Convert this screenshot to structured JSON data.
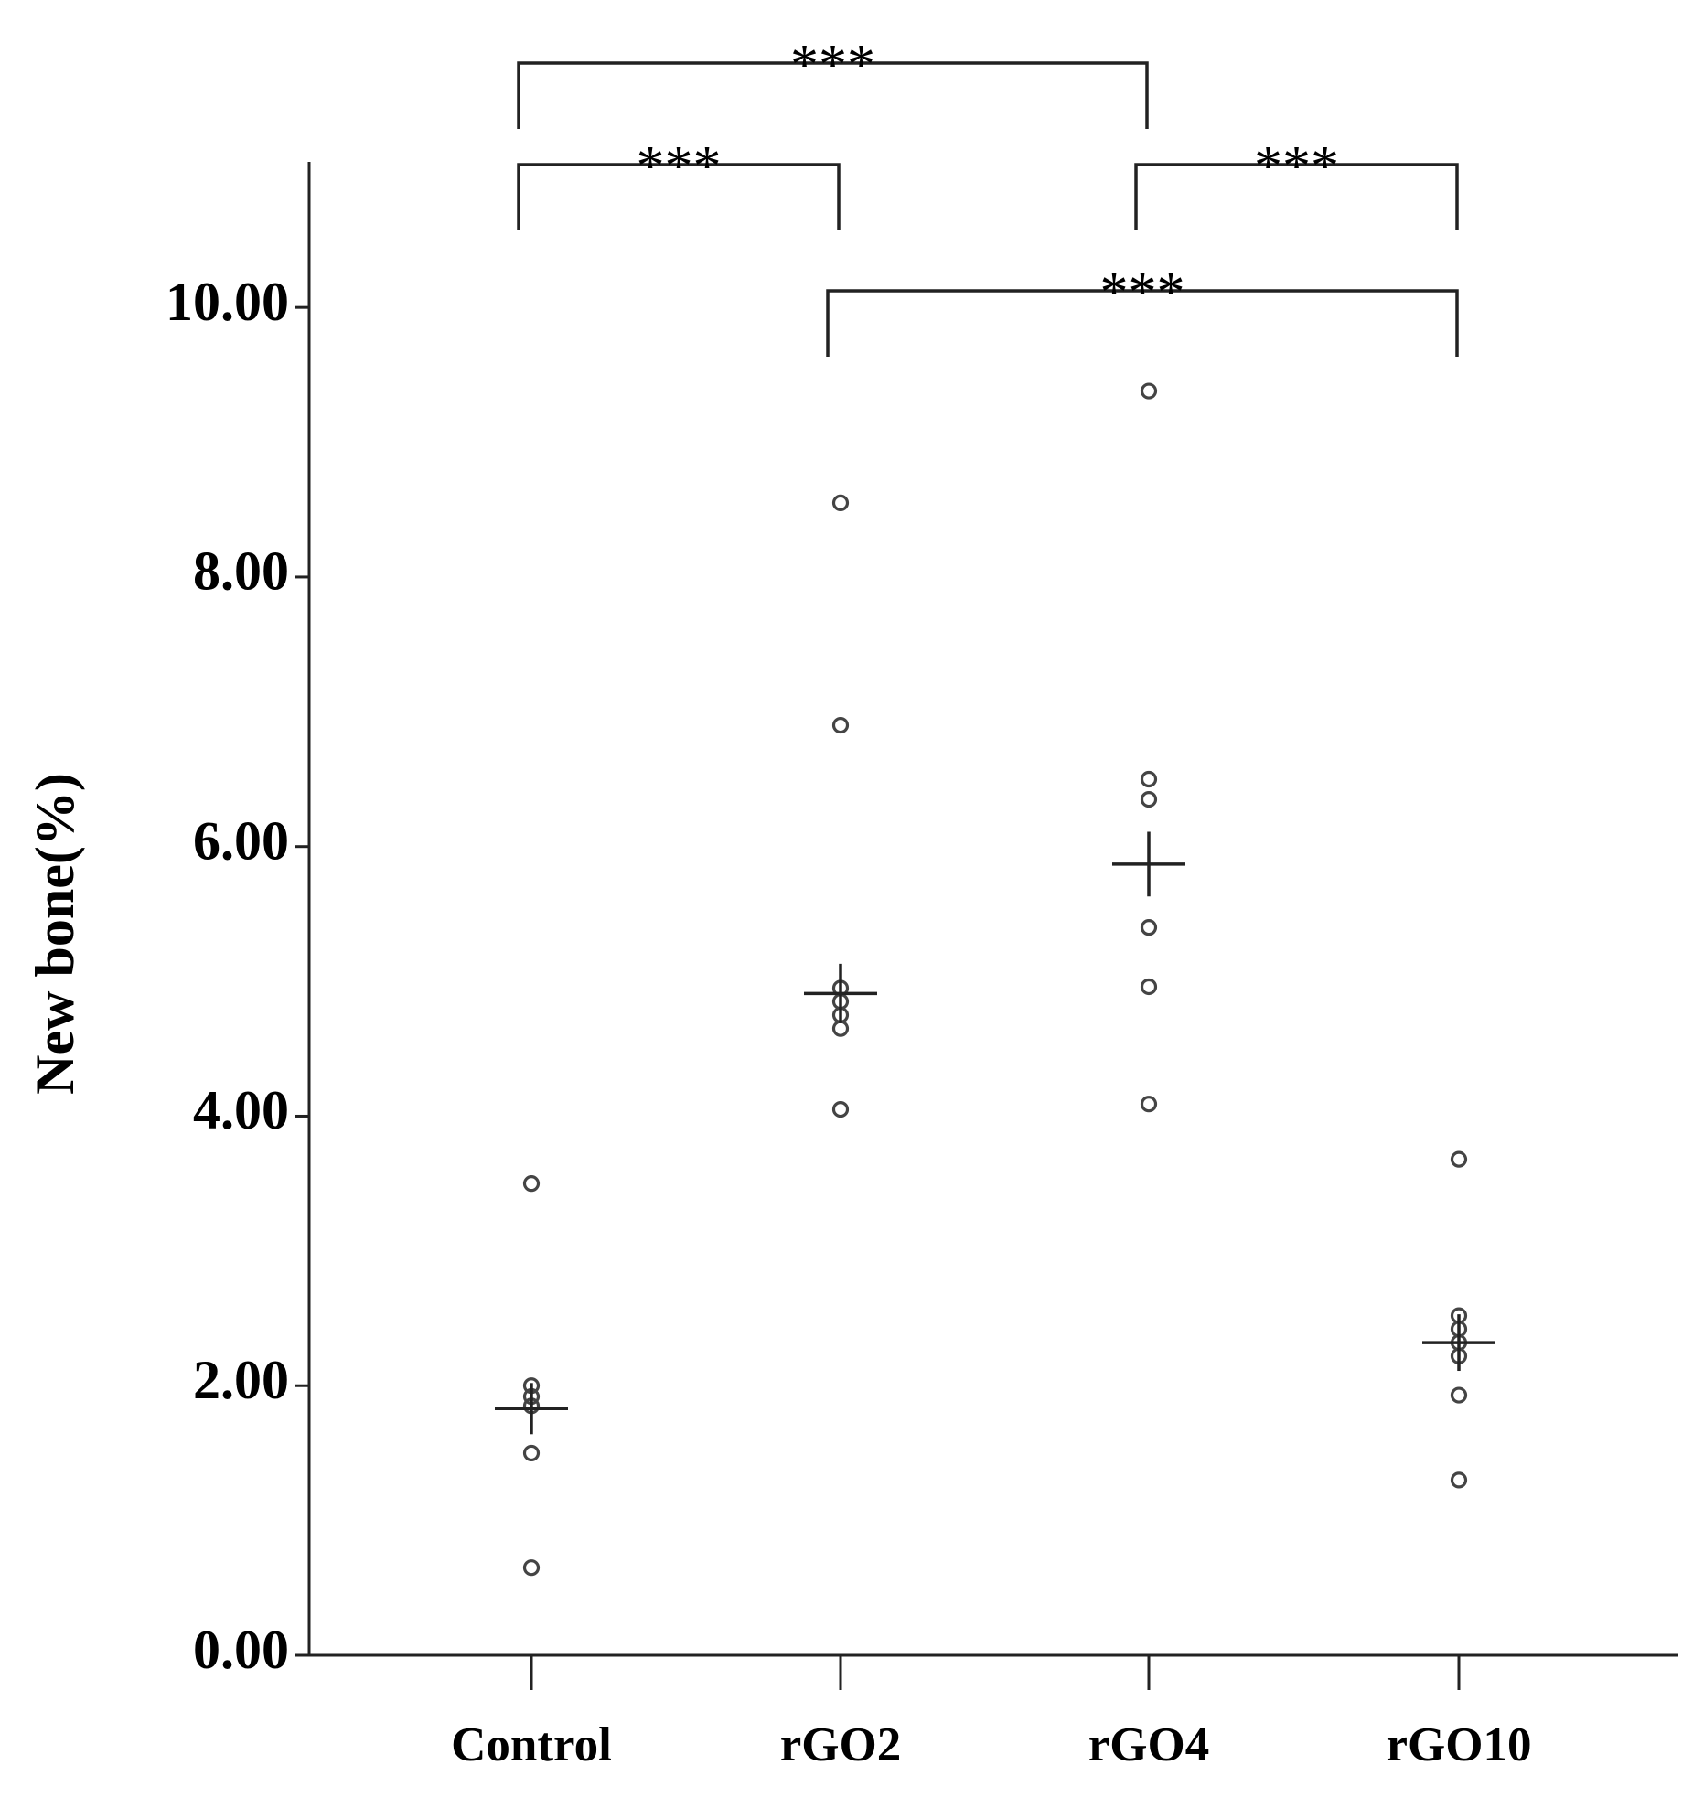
{
  "chart_data": {
    "type": "dot",
    "y_label": "New bone(%)",
    "categories": [
      "Control",
      "rGO2",
      "rGO4",
      "rGO10"
    ],
    "points": [
      [
        3.5,
        2.0,
        1.92,
        1.85,
        1.5,
        0.65
      ],
      [
        8.55,
        6.9,
        4.95,
        4.85,
        4.75,
        4.65,
        4.05
      ],
      [
        9.38,
        6.5,
        6.35,
        5.4,
        4.96,
        4.09
      ],
      [
        3.68,
        2.52,
        2.42,
        2.32,
        2.22,
        1.93,
        1.3
      ]
    ],
    "means": [
      1.83,
      4.91,
      5.87,
      2.32
    ],
    "errors": [
      0.19,
      0.22,
      0.24,
      0.21
    ],
    "ylim": [
      0,
      11.08
    ],
    "yticks": [
      {
        "value": 0,
        "label": "0.00"
      },
      {
        "value": 2,
        "label": "2.00"
      },
      {
        "value": 4,
        "label": "4.00"
      },
      {
        "value": 6,
        "label": "6.00"
      },
      {
        "value": 8,
        "label": "8.00"
      },
      {
        "value": 10,
        "label": "10.00"
      }
    ],
    "annotations": [
      {
        "text": "***",
        "from": "Control",
        "to": "rGO4"
      },
      {
        "text": "***",
        "from": "Control",
        "to": "rGO2"
      },
      {
        "text": "***",
        "from": "rGO4",
        "to": "rGO10"
      },
      {
        "text": "***",
        "from": "rGO2",
        "to": "rGO10"
      }
    ]
  }
}
